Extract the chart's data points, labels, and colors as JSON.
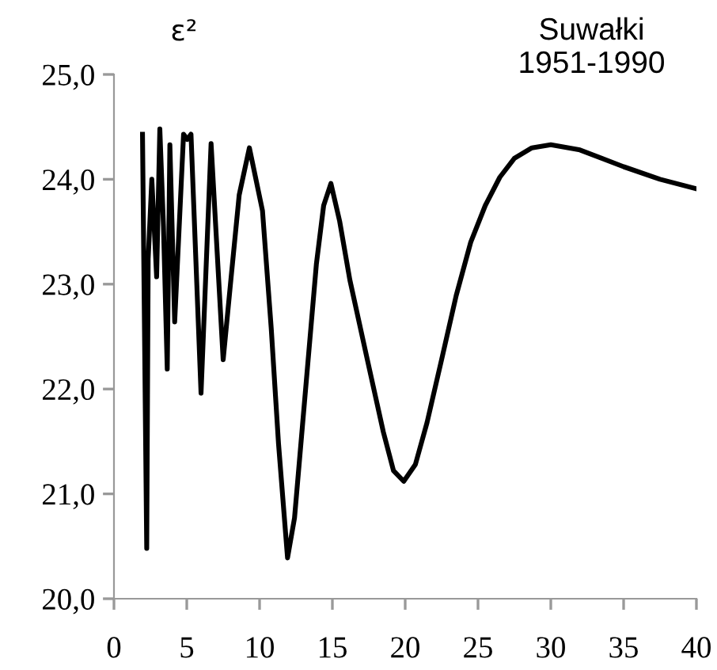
{
  "chart_data": {
    "type": "line",
    "title": "Suwałki\n1951-1990",
    "ylabel": "ε²",
    "x": [
      1.96,
      2.25,
      2.35,
      2.6,
      2.93,
      3.15,
      3.4,
      3.66,
      3.84,
      4.17,
      4.78,
      5.04,
      5.29,
      5.98,
      6.67,
      7.5,
      8.0,
      8.6,
      9.3,
      10.2,
      10.8,
      11.3,
      11.92,
      12.4,
      13.0,
      13.9,
      14.4,
      14.9,
      15.5,
      16.2,
      17.4,
      18.5,
      19.2,
      19.9,
      20.7,
      21.5,
      22.5,
      23.5,
      24.5,
      25.5,
      26.5,
      27.5,
      28.7,
      30,
      32,
      35,
      37.5,
      40
    ],
    "series": [
      {
        "color": "#000000",
        "values": [
          24.43,
          20.48,
          23.24,
          24.0,
          23.07,
          24.48,
          23.55,
          22.19,
          24.33,
          22.64,
          24.43,
          24.38,
          24.43,
          21.96,
          24.34,
          22.28,
          23.0,
          23.85,
          24.3,
          23.7,
          22.58,
          21.48,
          20.39,
          20.77,
          21.74,
          23.19,
          23.75,
          23.96,
          23.6,
          23.04,
          22.28,
          21.59,
          21.22,
          21.12,
          21.28,
          21.68,
          22.28,
          22.89,
          23.4,
          23.75,
          24.02,
          24.2,
          24.3,
          24.33,
          24.28,
          24.12,
          24.0,
          23.91
        ]
      }
    ],
    "xlim": [
      0,
      40
    ],
    "xticks": [
      0,
      5,
      10,
      15,
      20,
      25,
      30,
      35,
      40
    ],
    "ylim": [
      20,
      25
    ],
    "yticks": [
      {
        "value": 20,
        "label": "20,0"
      },
      {
        "value": 21,
        "label": "21,0"
      },
      {
        "value": 22,
        "label": "22,0"
      },
      {
        "value": 23,
        "label": "23,0"
      },
      {
        "value": 24,
        "label": "24,0"
      },
      {
        "value": 25,
        "label": "25,0"
      }
    ],
    "grid": false,
    "legend": false,
    "marker": "none",
    "line_style": "solid"
  }
}
